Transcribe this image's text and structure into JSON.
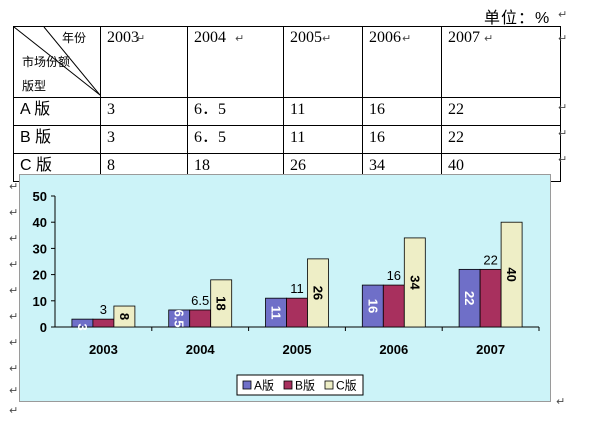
{
  "unit_label": "单位：%",
  "table": {
    "corner_top": "年份",
    "corner_mid": "市场份额",
    "corner_bottom": "版型",
    "years": [
      "2003",
      "2004",
      "2005",
      "2006",
      "2007"
    ],
    "rows": [
      {
        "label": "A 版",
        "values": [
          "3",
          "6．5",
          "11",
          "16",
          "22"
        ]
      },
      {
        "label": "B 版",
        "values": [
          "3",
          "6．5",
          "11",
          "16",
          "22"
        ]
      },
      {
        "label": "C 版",
        "values": [
          "8",
          "18",
          "26",
          "34",
          "40"
        ]
      }
    ]
  },
  "chart_data": {
    "type": "bar",
    "categories": [
      "2003",
      "2004",
      "2005",
      "2006",
      "2007"
    ],
    "series": [
      {
        "name": "A版",
        "values": [
          3,
          6.5,
          11,
          16,
          22
        ],
        "color": "#6f6fc8"
      },
      {
        "name": "B版",
        "values": [
          3,
          6.5,
          11,
          16,
          22
        ],
        "color": "#a8305e"
      },
      {
        "name": "C版",
        "values": [
          8,
          18,
          26,
          34,
          40
        ],
        "color": "#eeeec6"
      }
    ],
    "ylim": [
      0,
      50
    ],
    "yticks": [
      0,
      10,
      20,
      30,
      40,
      50
    ],
    "legend": "bottom",
    "background": "#ccf3f8",
    "data_labels": {
      "A版": [
        "3",
        "6.5",
        "11",
        "16",
        "22"
      ],
      "B版": [
        "3",
        "6.5",
        "11",
        "16",
        "22"
      ],
      "C版": [
        "8",
        "18",
        "26",
        "34",
        "40"
      ]
    }
  }
}
